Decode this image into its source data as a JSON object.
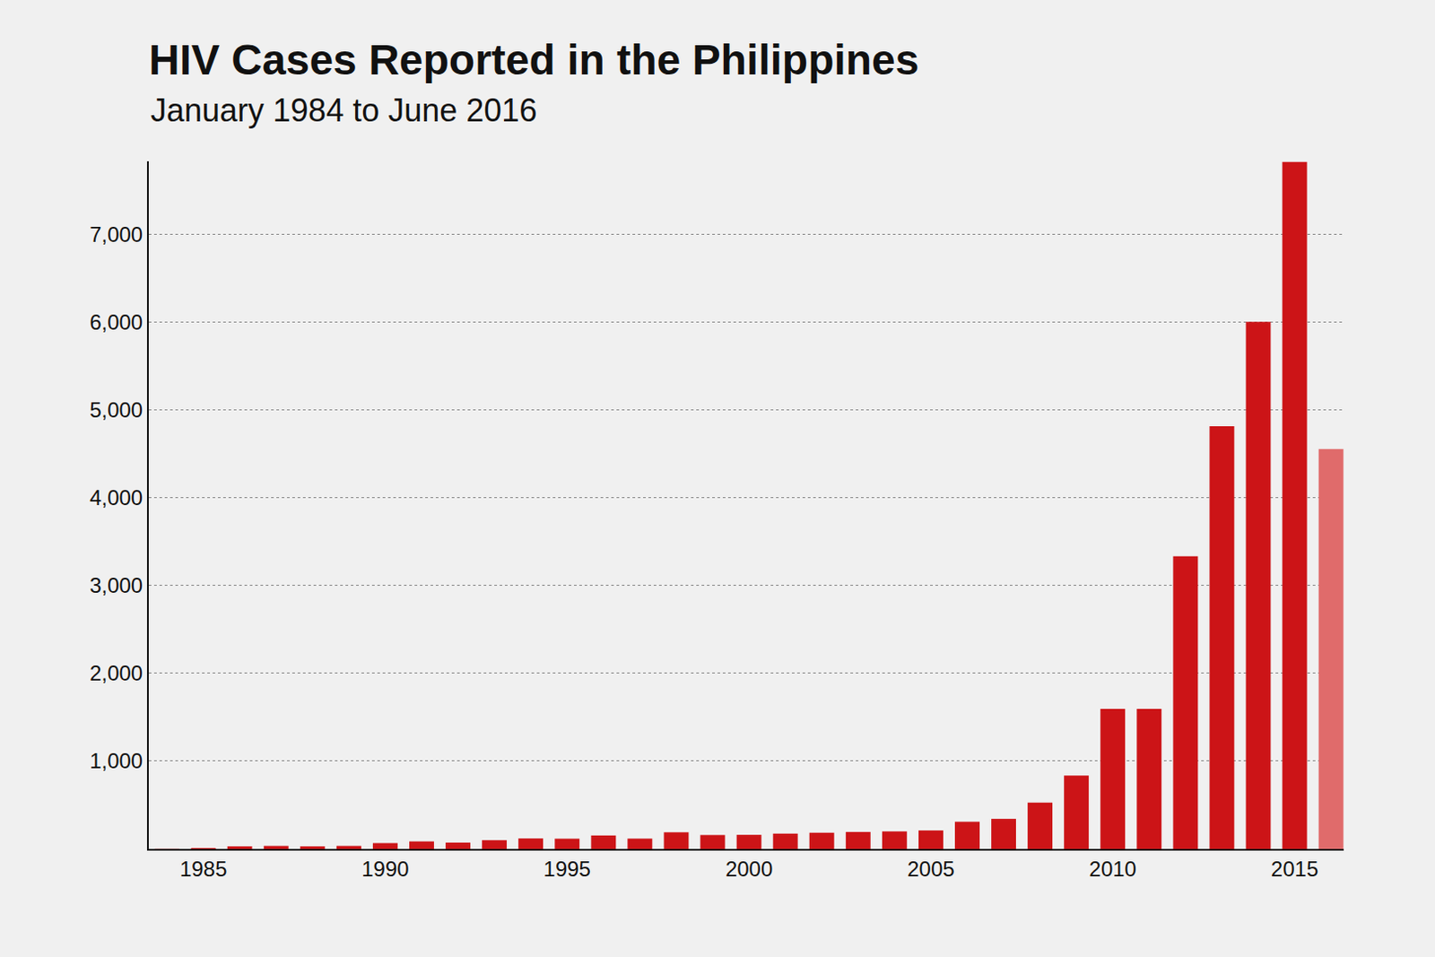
{
  "chart_data": {
    "type": "bar",
    "title": "HIV Cases Reported in the Philippines",
    "subtitle": "January 1984 to June 2016",
    "x": [
      1984,
      1985,
      1986,
      1987,
      1988,
      1989,
      1990,
      1991,
      1992,
      1993,
      1994,
      1995,
      1996,
      1997,
      1998,
      1999,
      2000,
      2001,
      2002,
      2003,
      2004,
      2005,
      2006,
      2007,
      2008,
      2009,
      2010,
      2011,
      2012,
      2013,
      2014,
      2015,
      2016
    ],
    "values": [
      2,
      10,
      29,
      34,
      29,
      34,
      66,
      85,
      72,
      99,
      119,
      116,
      153,
      117,
      189,
      158,
      160,
      174,
      184,
      193,
      199,
      210,
      309,
      342,
      528,
      835,
      1594,
      1594,
      3333,
      4813,
      6000,
      7823,
      4552
    ],
    "colors": [
      "#cc1417",
      "#cc1417",
      "#cc1417",
      "#cc1417",
      "#cc1417",
      "#cc1417",
      "#cc1417",
      "#cc1417",
      "#cc1417",
      "#cc1417",
      "#cc1417",
      "#cc1417",
      "#cc1417",
      "#cc1417",
      "#cc1417",
      "#cc1417",
      "#cc1417",
      "#cc1417",
      "#cc1417",
      "#cc1417",
      "#cc1417",
      "#cc1417",
      "#cc1417",
      "#cc1417",
      "#cc1417",
      "#cc1417",
      "#cc1417",
      "#cc1417",
      "#cc1417",
      "#cc1417",
      "#cc1417",
      "#cc1417",
      "#e06b6b"
    ],
    "xlim": [
      1983.5,
      2016.35
    ],
    "xticks": [
      1985,
      1990,
      1995,
      2000,
      2005,
      2010,
      2015
    ],
    "ylim": [
      0,
      7830
    ],
    "yticks": [
      {
        "value": 1000,
        "label": "1,000"
      },
      {
        "value": 2000,
        "label": "2,000"
      },
      {
        "value": 3000,
        "label": "3,000"
      },
      {
        "value": 4000,
        "label": "4,000"
      },
      {
        "value": 5000,
        "label": "5,000"
      },
      {
        "value": 6000,
        "label": "6,000"
      },
      {
        "value": 7000,
        "label": "7,000"
      }
    ],
    "grid": true
  }
}
